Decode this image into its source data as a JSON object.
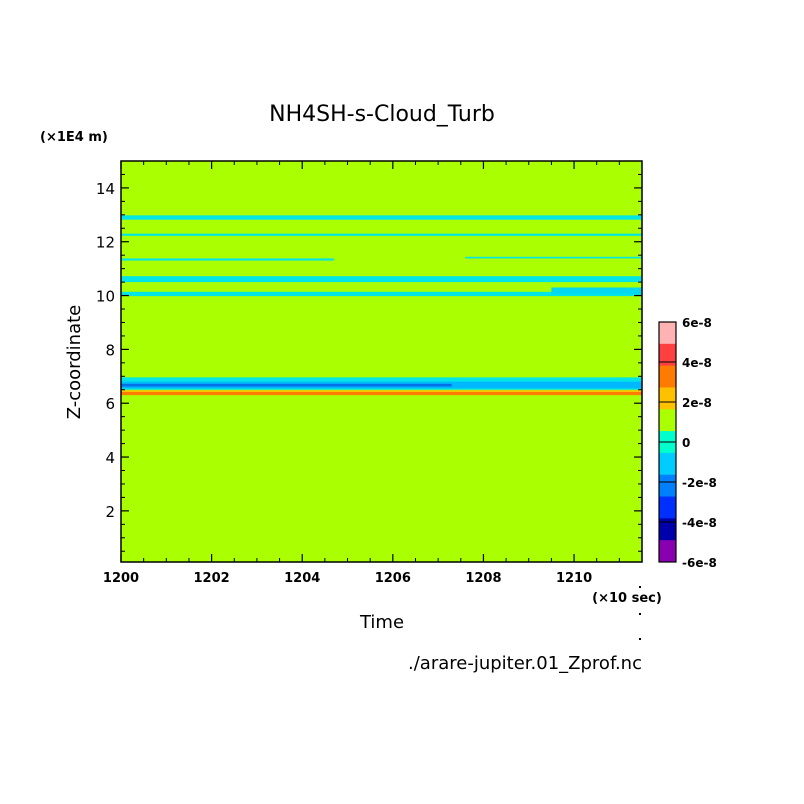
{
  "chart_data": {
    "type": "heatmap",
    "title": "NH4SH-s-Cloud_Turb",
    "xlabel": "Time",
    "ylabel": "Z-coordinate",
    "x_unit": "(×10 sec)",
    "y_unit": "(×1E4 m)",
    "source": "./arare-jupiter.01_Zprof.nc",
    "xlim": [
      1200,
      1211.5
    ],
    "ylim": [
      0.1,
      15
    ],
    "x_ticks": [
      "1200",
      "1202",
      "1204",
      "1206",
      "1208",
      "1210"
    ],
    "y_ticks": [
      "2",
      "4",
      "6",
      "8",
      "10",
      "12",
      "14"
    ],
    "background_level": "0",
    "colorbar": {
      "levels": [
        "6e-8",
        "4e-8",
        "2e-8",
        "0",
        "-2e-8",
        "-4e-8",
        "-6e-8"
      ],
      "colors": [
        "#ffb3b3",
        "#ff4040",
        "#ff7a00",
        "#ffc000",
        "#aaff00",
        "#00ffcc",
        "#00ccff",
        "#0080ff",
        "#0030ff",
        "#0000aa",
        "#8800b0"
      ]
    },
    "bands": [
      {
        "x0": 1200,
        "x1": 1211.5,
        "z0": 12.82,
        "z1": 12.98,
        "color": "#00e5e5"
      },
      {
        "x0": 1200,
        "x1": 1211.5,
        "z0": 12.22,
        "z1": 12.3,
        "color": "#00e5e5"
      },
      {
        "x0": 1200,
        "x1": 1204.7,
        "z0": 11.3,
        "z1": 11.38,
        "color": "#00e5e5"
      },
      {
        "x0": 1207.6,
        "x1": 1211.5,
        "z0": 11.38,
        "z1": 11.44,
        "color": "#00e5e5"
      },
      {
        "x0": 1200,
        "x1": 1211.5,
        "z0": 10.5,
        "z1": 10.72,
        "color": "#00e5e5"
      },
      {
        "x0": 1200,
        "x1": 1211.5,
        "z0": 9.98,
        "z1": 10.14,
        "color": "#00e5e5"
      },
      {
        "x0": 1209.5,
        "x1": 1211.5,
        "z0": 10.05,
        "z1": 10.3,
        "color": "#00d8f0"
      },
      {
        "x0": 1200,
        "x1": 1211.5,
        "z0": 6.5,
        "z1": 6.96,
        "color": "#00e5e5"
      },
      {
        "x0": 1200,
        "x1": 1211.5,
        "z0": 6.55,
        "z1": 6.8,
        "color": "#00b8ff"
      },
      {
        "x0": 1200,
        "x1": 1207.3,
        "z0": 6.62,
        "z1": 6.72,
        "color": "#0070e8"
      },
      {
        "x0": 1200,
        "x1": 1211.5,
        "z0": 6.3,
        "z1": 6.42,
        "color": "#ff7a00"
      },
      {
        "x0": 1200,
        "x1": 1211.5,
        "z0": 6.42,
        "z1": 6.48,
        "color": "#ffc000"
      }
    ]
  }
}
